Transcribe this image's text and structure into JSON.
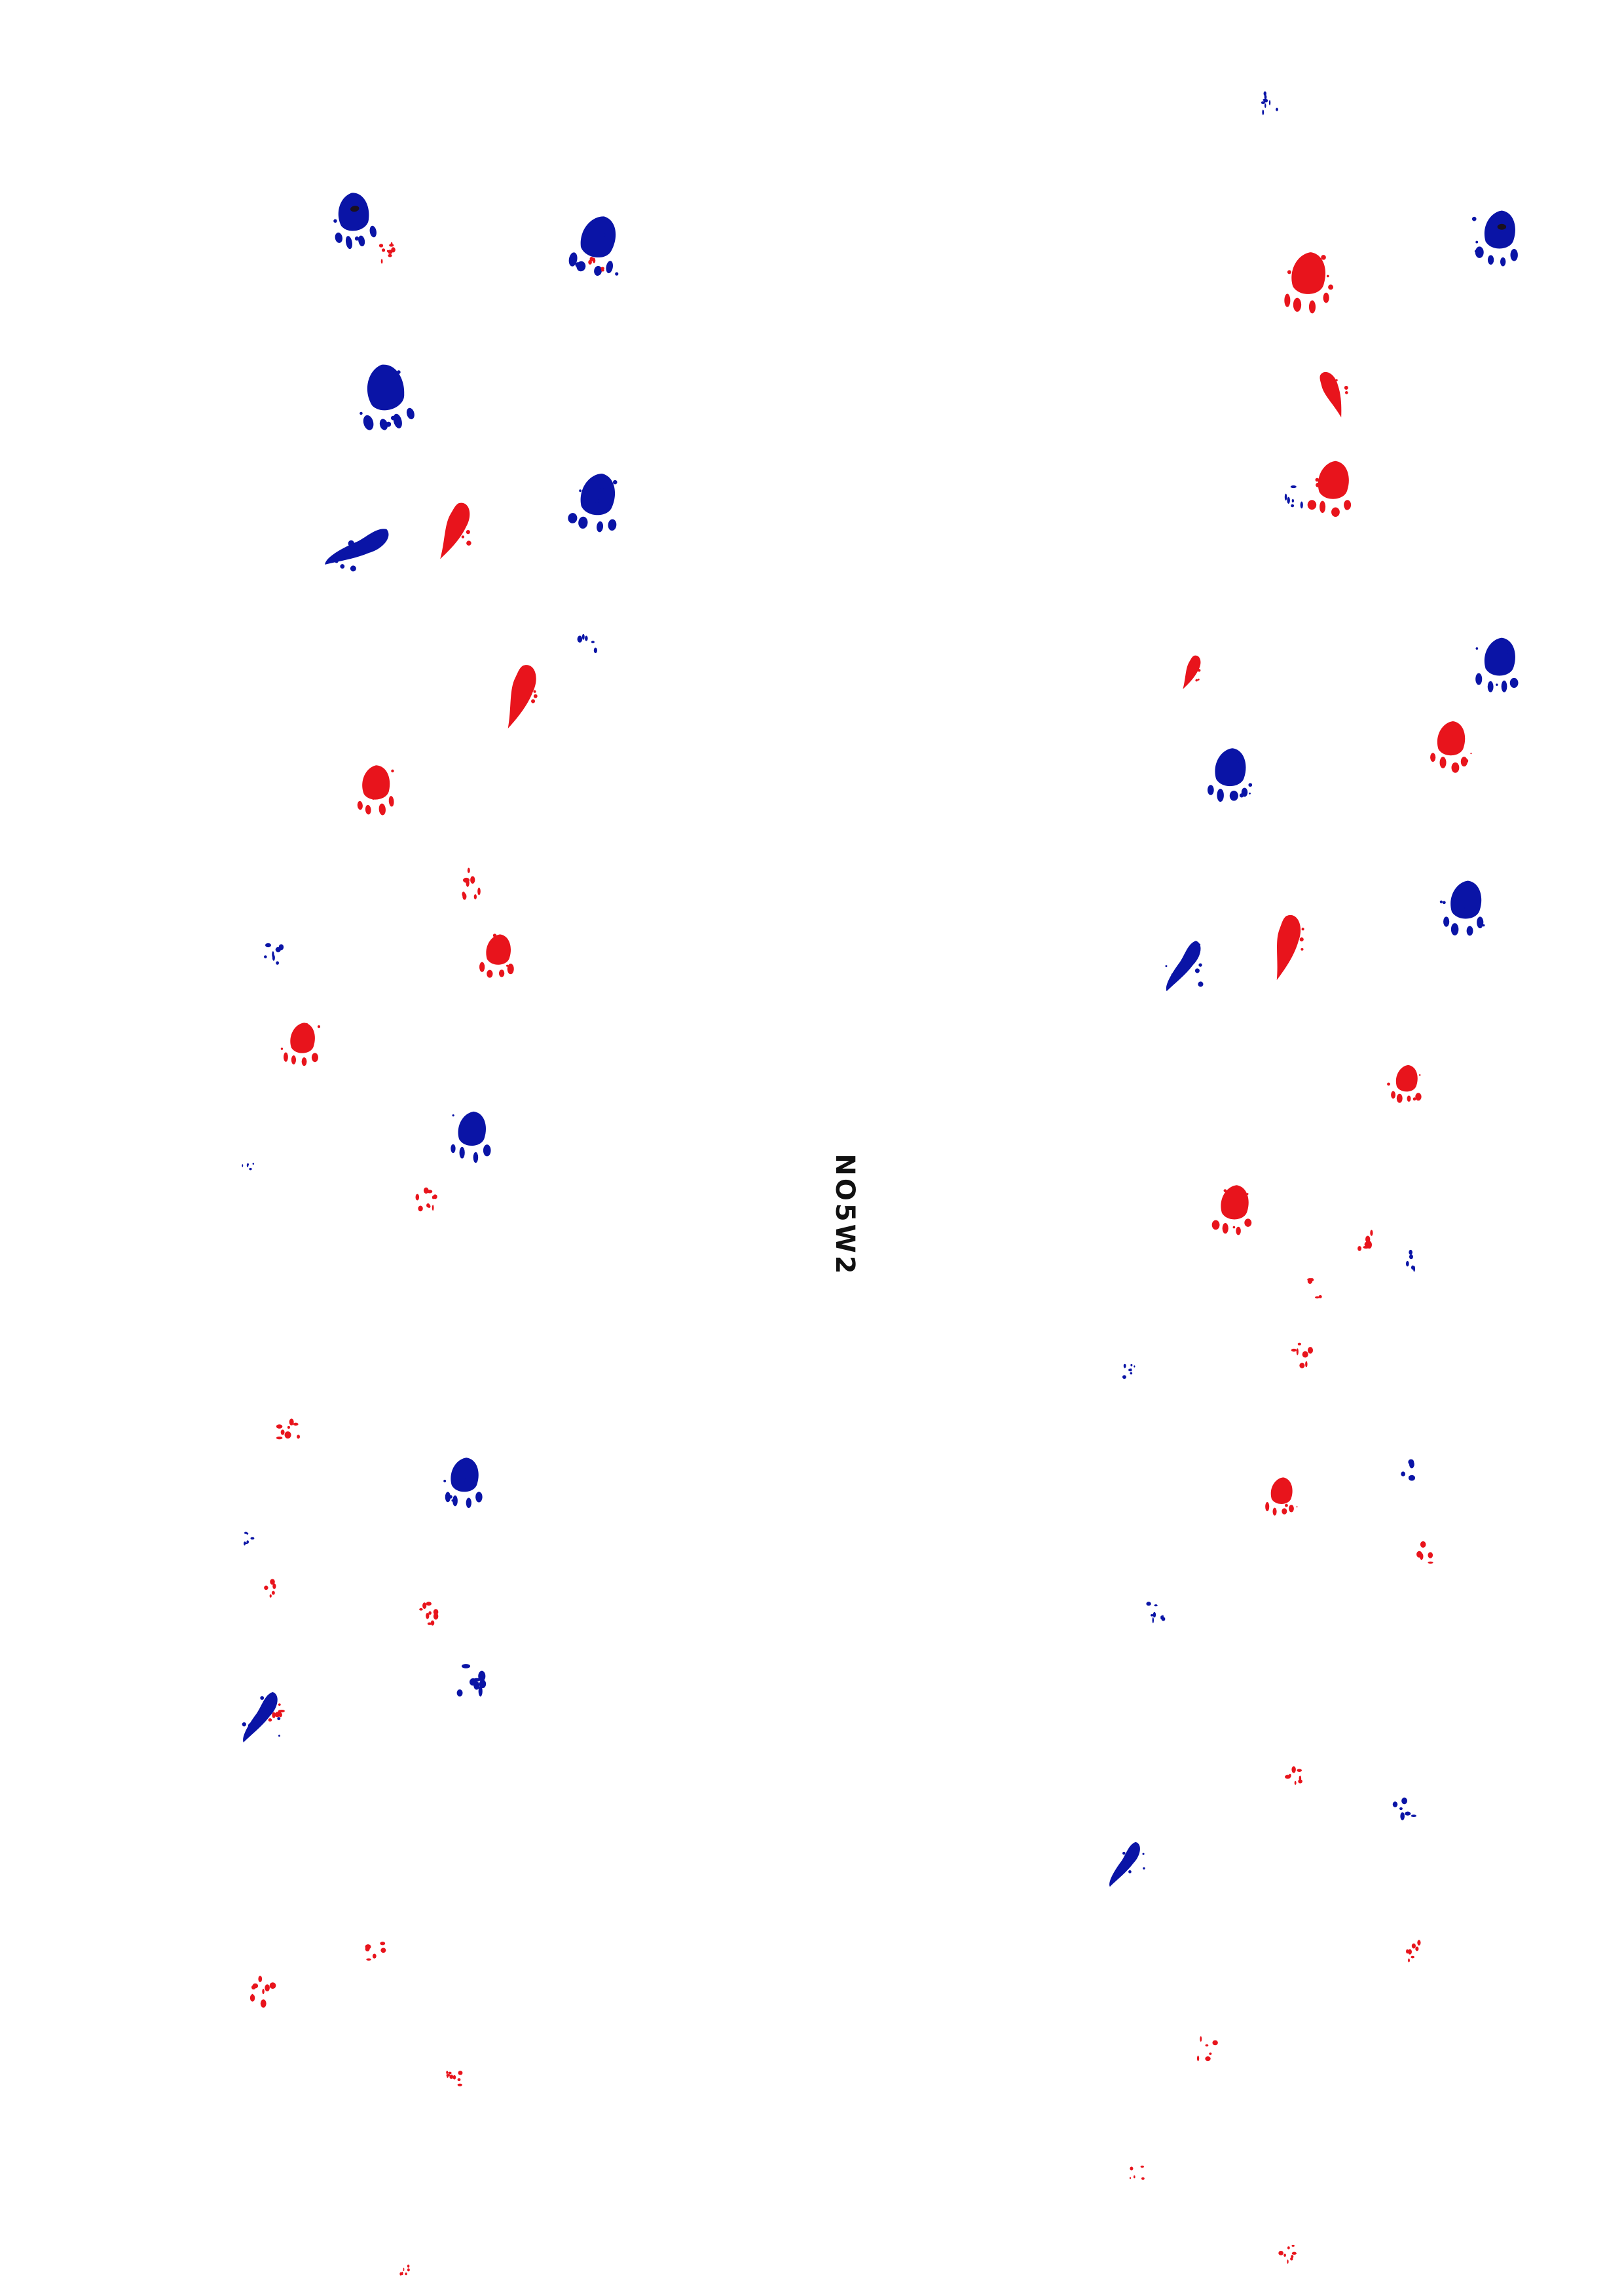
{
  "sheet": {
    "label": "NO5W2"
  },
  "colors": {
    "background": "#ffffff",
    "ink_blue": "#0a14a6",
    "ink_red": "#e8141c",
    "ink_dark": "#1a1020",
    "label_text": "#111111"
  }
}
